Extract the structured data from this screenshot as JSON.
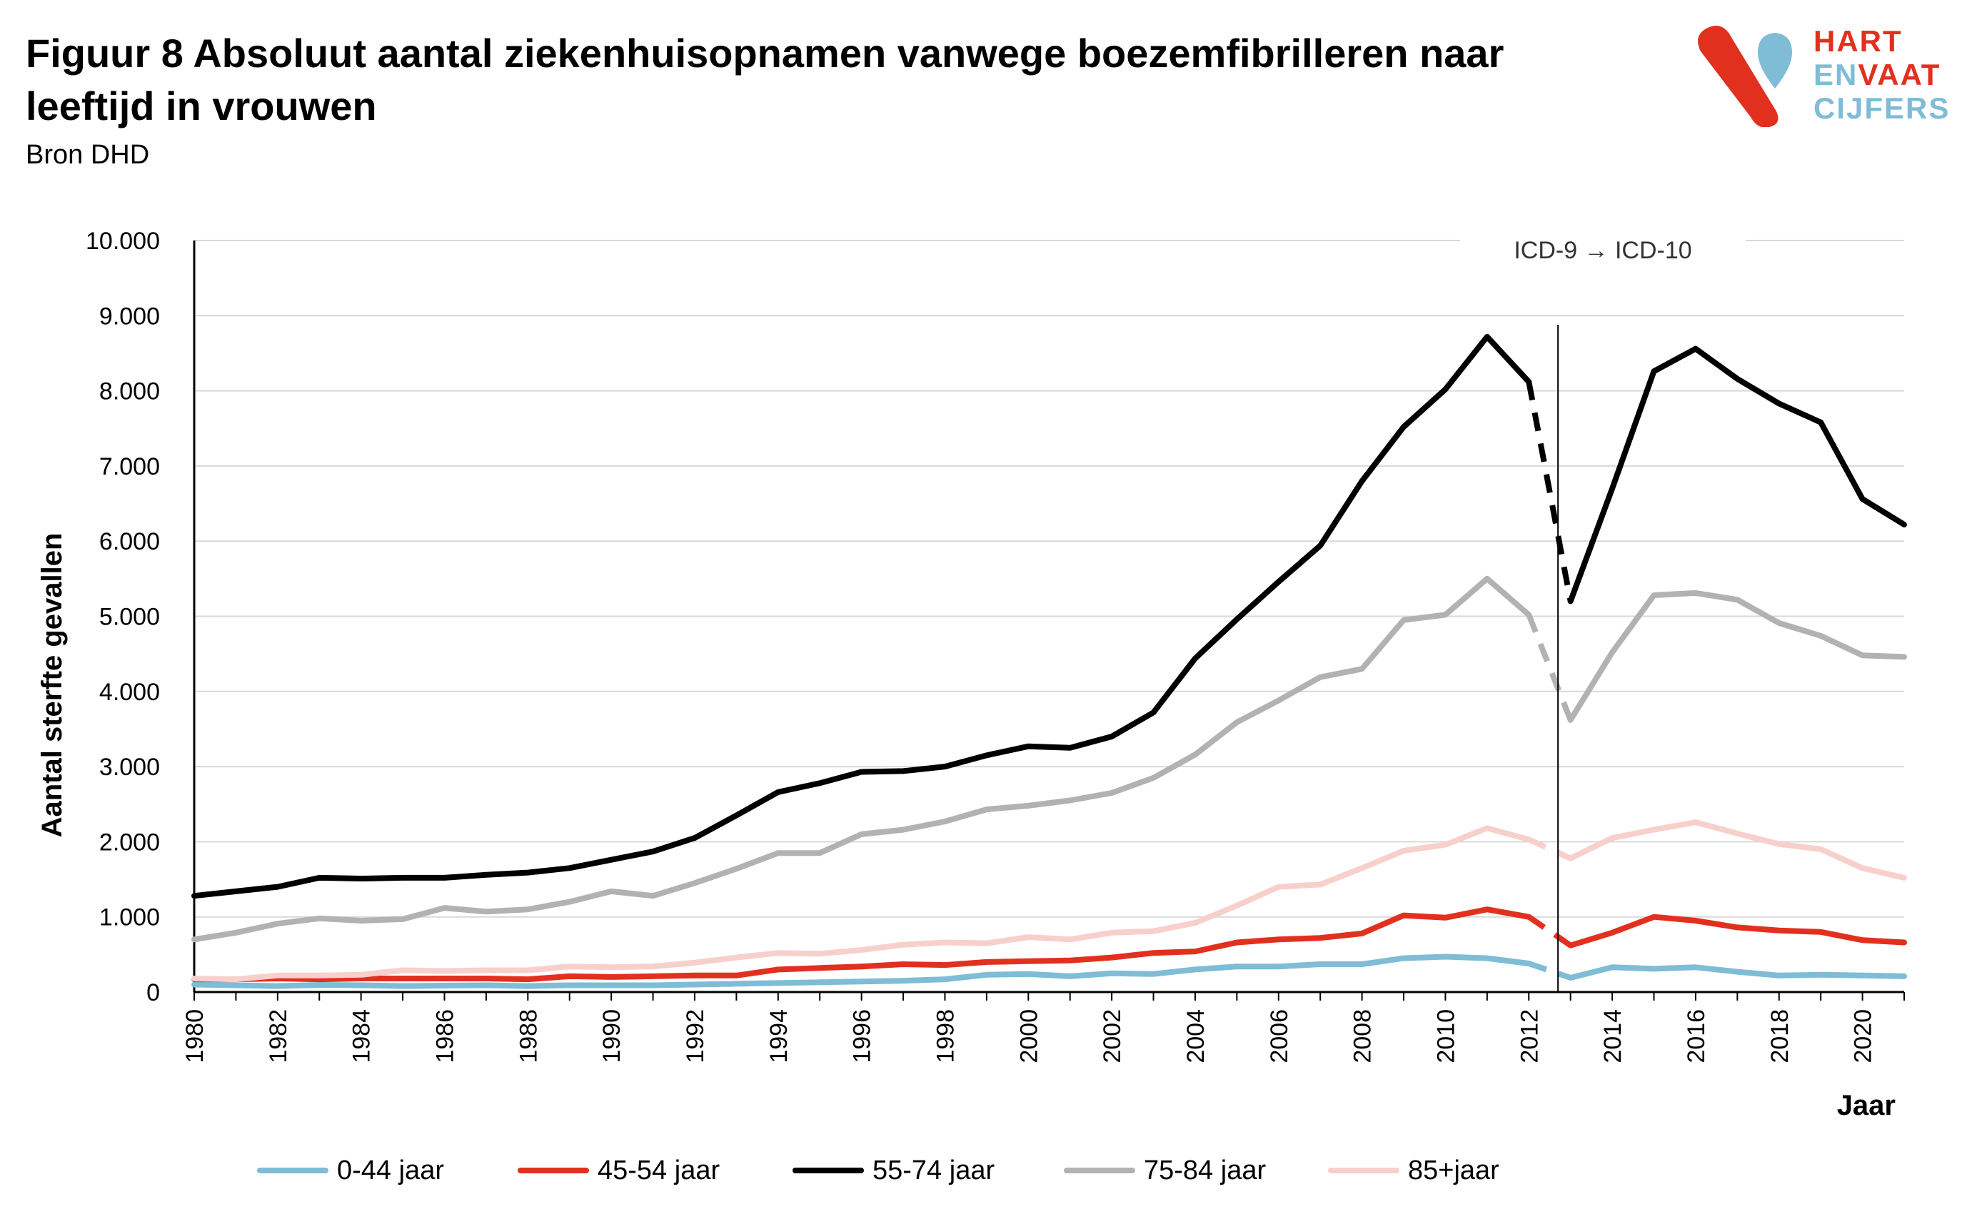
{
  "title": "Figuur 8 Absoluut aantal ziekenhuisopnamen vanwege boezemfibrilleren naar leeftijd in vrouwen",
  "subtitle": "Bron DHD",
  "logo": {
    "line1": "HART",
    "line2a": "EN",
    "line2b": "VAAT",
    "line3": "CIJFERS",
    "colors": {
      "red": "#e2301f",
      "blue": "#7fbcd6"
    }
  },
  "chart_data": {
    "type": "line",
    "title": "Figuur 8 Absoluut aantal ziekenhuisopnamen vanwege boezemfibrilleren naar leeftijd in vrouwen",
    "xlabel": "Jaar",
    "ylabel": "Aantal sterfte gevallen",
    "ylim": [
      0,
      10000
    ],
    "xlim": [
      1980,
      2021
    ],
    "yticks": [
      "0",
      "1.000",
      "2.000",
      "3.000",
      "4.000",
      "5.000",
      "6.000",
      "7.000",
      "8.000",
      "9.000",
      "10.000"
    ],
    "xticks": [
      "1980",
      "1982",
      "1984",
      "1986",
      "1988",
      "1990",
      "1992",
      "1994",
      "1996",
      "1998",
      "2000",
      "2002",
      "2004",
      "2006",
      "2008",
      "2010",
      "2012",
      "2014",
      "2016",
      "2018",
      "2020"
    ],
    "grid": "horizontal",
    "legend_position": "bottom",
    "annotation": {
      "text": "ICD-9 → ICD-10",
      "x": 2012.7
    },
    "break_between": [
      2012,
      2013
    ],
    "x": [
      1980,
      1981,
      1982,
      1983,
      1984,
      1985,
      1986,
      1987,
      1988,
      1989,
      1990,
      1991,
      1992,
      1993,
      1994,
      1995,
      1996,
      1997,
      1998,
      1999,
      2000,
      2001,
      2002,
      2003,
      2004,
      2005,
      2006,
      2007,
      2008,
      2009,
      2010,
      2011,
      2012,
      2013,
      2014,
      2015,
      2016,
      2017,
      2018,
      2019,
      2020,
      2021
    ],
    "series": [
      {
        "name": "0-44 jaar",
        "color": "#7fbcd6",
        "values": [
          100,
          90,
          80,
          95,
          90,
          80,
          85,
          90,
          80,
          90,
          90,
          90,
          100,
          110,
          120,
          130,
          140,
          150,
          170,
          230,
          240,
          210,
          250,
          240,
          300,
          340,
          340,
          370,
          370,
          450,
          470,
          450,
          380,
          190,
          330,
          310,
          330,
          270,
          220,
          230,
          220,
          210
        ]
      },
      {
        "name": "45-54 jaar",
        "color": "#e2301f",
        "values": [
          170,
          170,
          180,
          170,
          180,
          180,
          180,
          180,
          170,
          210,
          200,
          210,
          220,
          220,
          300,
          320,
          340,
          370,
          360,
          400,
          410,
          420,
          460,
          520,
          540,
          660,
          700,
          720,
          780,
          1020,
          990,
          1100,
          1000,
          620,
          790,
          1000,
          950,
          860,
          820,
          800,
          690,
          660
        ]
      },
      {
        "name": "55-74 jaar",
        "color": "#000000",
        "values": [
          1280,
          1340,
          1400,
          1520,
          1510,
          1520,
          1520,
          1560,
          1590,
          1650,
          1760,
          1870,
          2050,
          2350,
          2660,
          2780,
          2930,
          2940,
          3000,
          3150,
          3270,
          3250,
          3400,
          3720,
          4440,
          4960,
          5460,
          5940,
          6800,
          7520,
          8020,
          8720,
          8120,
          5200,
          6700,
          8260,
          8560,
          8160,
          7830,
          7580,
          6560,
          6220
        ]
      },
      {
        "name": "75-84 jaar",
        "color": "#b2b2b2",
        "values": [
          700,
          790,
          910,
          980,
          950,
          970,
          1120,
          1070,
          1100,
          1200,
          1340,
          1280,
          1450,
          1640,
          1850,
          1850,
          2100,
          2160,
          2270,
          2430,
          2480,
          2550,
          2650,
          2850,
          3160,
          3590,
          3880,
          4190,
          4300,
          4950,
          5020,
          5500,
          5020,
          3620,
          4520,
          5280,
          5310,
          5220,
          4910,
          4740,
          4480,
          4460
        ]
      },
      {
        "name": "85+jaar",
        "color": "#f7d0cc",
        "values": [
          180,
          170,
          220,
          220,
          230,
          290,
          280,
          290,
          290,
          340,
          330,
          340,
          390,
          460,
          520,
          510,
          560,
          630,
          660,
          650,
          730,
          700,
          790,
          810,
          920,
          1150,
          1400,
          1430,
          1650,
          1880,
          1960,
          2180,
          2030,
          1780,
          2050,
          2160,
          2260,
          2110,
          1970,
          1900,
          1650,
          1520
        ]
      }
    ]
  }
}
